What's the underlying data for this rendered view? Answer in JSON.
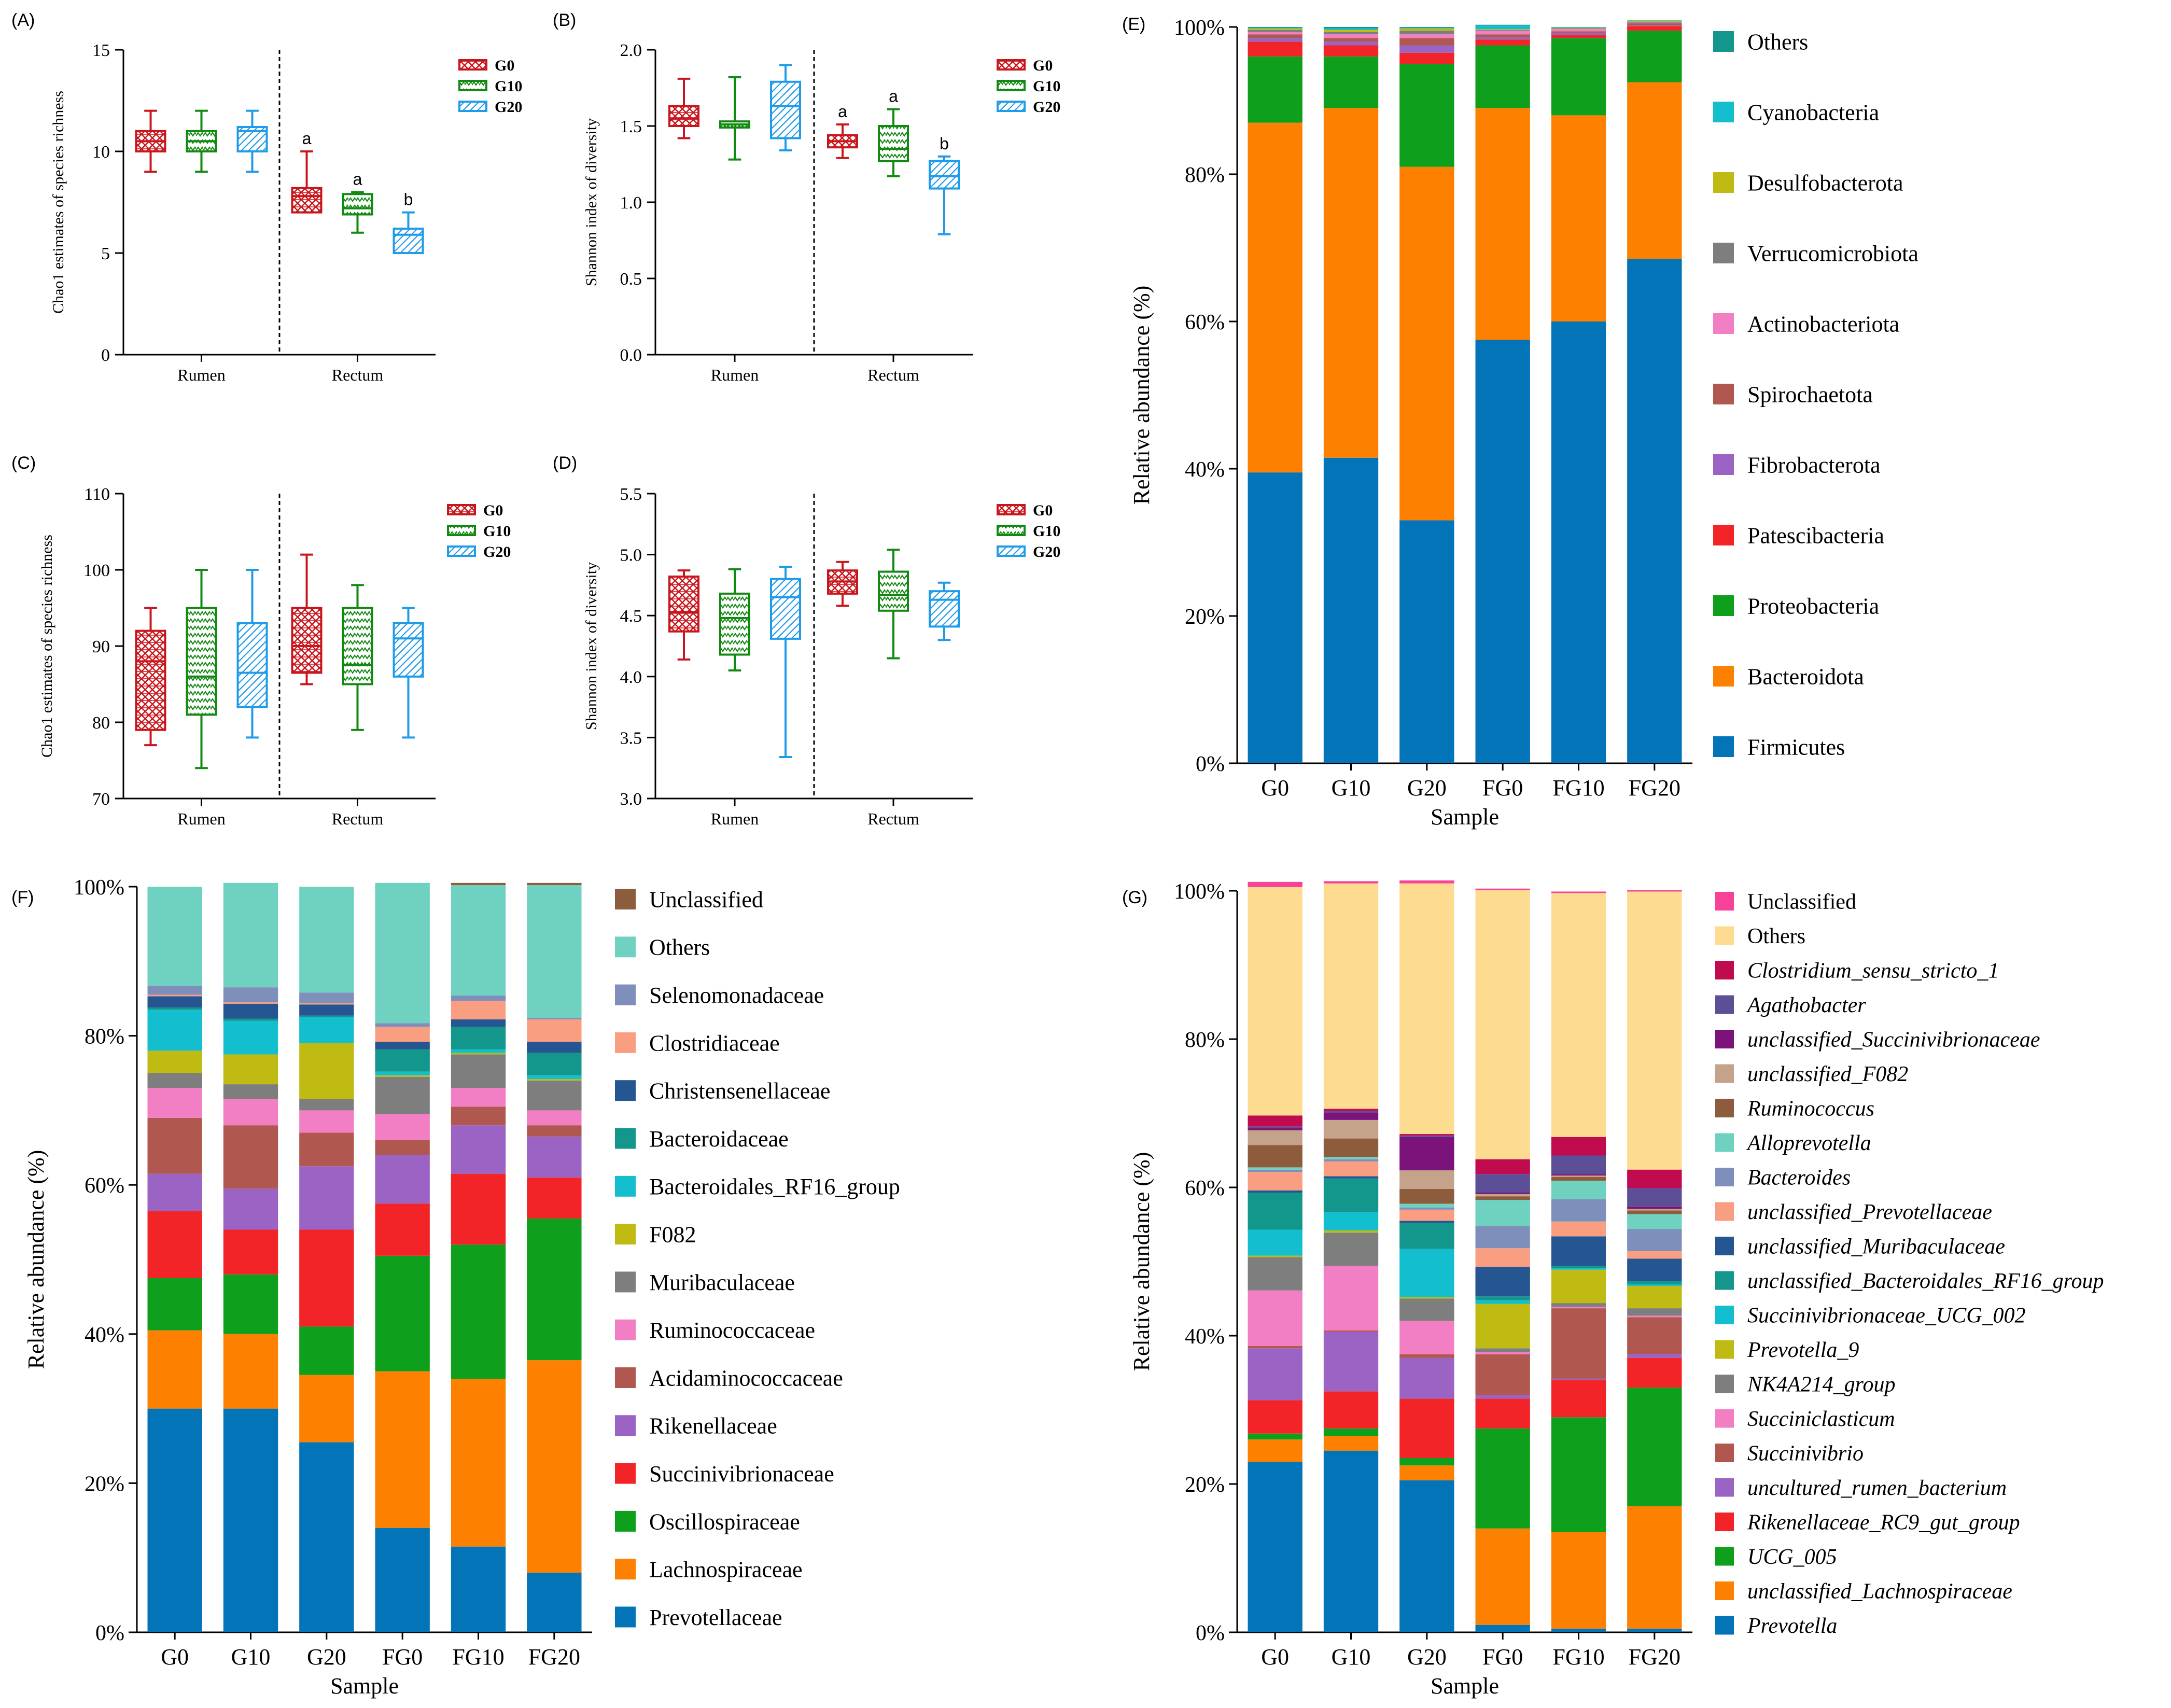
{
  "chart_data": [
    {
      "panel": "(A)",
      "type": "boxplot",
      "ylabel": "Chao1 estimates of species richness",
      "ylim": [
        0,
        15
      ],
      "yticks": [
        0,
        5,
        10,
        15
      ],
      "groups": [
        "Rumen",
        "Rectum"
      ],
      "legend": [
        "G0",
        "G10",
        "G20"
      ],
      "series": [
        {
          "name": "G0",
          "group": "Rumen",
          "min": 9,
          "q1": 10,
          "median": 10.5,
          "q3": 11,
          "max": 12,
          "letter": ""
        },
        {
          "name": "G10",
          "group": "Rumen",
          "min": 9,
          "q1": 10,
          "median": 10.5,
          "q3": 11,
          "max": 12,
          "letter": ""
        },
        {
          "name": "G20",
          "group": "Rumen",
          "min": 9,
          "q1": 10,
          "median": 11,
          "q3": 11.2,
          "max": 12,
          "letter": ""
        },
        {
          "name": "G0",
          "group": "Rectum",
          "min": 7,
          "q1": 7,
          "median": 7.8,
          "q3": 8.2,
          "max": 10,
          "letter": "a"
        },
        {
          "name": "G10",
          "group": "Rectum",
          "min": 6,
          "q1": 6.9,
          "median": 7.2,
          "q3": 7.9,
          "max": 8,
          "letter": "a"
        },
        {
          "name": "G20",
          "group": "Rectum",
          "min": 5,
          "q1": 5,
          "median": 5.9,
          "q3": 6.2,
          "max": 7,
          "letter": "b"
        }
      ]
    },
    {
      "panel": "(B)",
      "type": "boxplot",
      "ylabel": "Shannon index of diversity",
      "ylim": [
        0.0,
        2.0
      ],
      "yticks": [
        "0.0",
        "0.5",
        "1.0",
        "1.5",
        "2.0"
      ],
      "groups": [
        "Rumen",
        "Rectum"
      ],
      "legend": [
        "G0",
        "G10",
        "G20"
      ],
      "series": [
        {
          "name": "G0",
          "group": "Rumen",
          "min": 1.42,
          "q1": 1.5,
          "median": 1.55,
          "q3": 1.63,
          "max": 1.81,
          "letter": ""
        },
        {
          "name": "G10",
          "group": "Rumen",
          "min": 1.28,
          "q1": 1.49,
          "median": 1.51,
          "q3": 1.53,
          "max": 1.82,
          "letter": ""
        },
        {
          "name": "G20",
          "group": "Rumen",
          "min": 1.34,
          "q1": 1.42,
          "median": 1.63,
          "q3": 1.79,
          "max": 1.9,
          "letter": ""
        },
        {
          "name": "G0",
          "group": "Rectum",
          "min": 1.29,
          "q1": 1.36,
          "median": 1.4,
          "q3": 1.44,
          "max": 1.51,
          "letter": "a"
        },
        {
          "name": "G10",
          "group": "Rectum",
          "min": 1.17,
          "q1": 1.27,
          "median": 1.35,
          "q3": 1.5,
          "max": 1.61,
          "letter": "a"
        },
        {
          "name": "G20",
          "group": "Rectum",
          "min": 0.79,
          "q1": 1.09,
          "median": 1.17,
          "q3": 1.27,
          "max": 1.3,
          "letter": "b"
        }
      ]
    },
    {
      "panel": "(C)",
      "type": "boxplot",
      "ylabel": "Chao1 estimates of species richness",
      "ylim": [
        70,
        110
      ],
      "yticks": [
        70,
        80,
        90,
        100,
        110
      ],
      "groups": [
        "Rumen",
        "Rectum"
      ],
      "legend": [
        "G0",
        "G10",
        "G20"
      ],
      "series": [
        {
          "name": "G0",
          "group": "Rumen",
          "min": 77,
          "q1": 79,
          "median": 88,
          "q3": 92,
          "max": 95,
          "letter": ""
        },
        {
          "name": "G10",
          "group": "Rumen",
          "min": 74,
          "q1": 81,
          "median": 86,
          "q3": 95,
          "max": 100,
          "letter": ""
        },
        {
          "name": "G20",
          "group": "Rumen",
          "min": 78,
          "q1": 82,
          "median": 86.5,
          "q3": 93,
          "max": 100,
          "letter": ""
        },
        {
          "name": "G0",
          "group": "Rectum",
          "min": 85,
          "q1": 86.5,
          "median": 90,
          "q3": 95,
          "max": 102,
          "letter": ""
        },
        {
          "name": "G10",
          "group": "Rectum",
          "min": 79,
          "q1": 85,
          "median": 87.5,
          "q3": 95,
          "max": 98,
          "letter": ""
        },
        {
          "name": "G20",
          "group": "Rectum",
          "min": 78,
          "q1": 86,
          "median": 91,
          "q3": 93,
          "max": 95,
          "letter": ""
        }
      ]
    },
    {
      "panel": "(D)",
      "type": "boxplot",
      "ylabel": "Shannon index of diversity",
      "ylim": [
        3.0,
        5.5
      ],
      "yticks": [
        "3.0",
        "3.5",
        "4.0",
        "4.5",
        "5.0",
        "5.5"
      ],
      "groups": [
        "Rumen",
        "Rectum"
      ],
      "legend": [
        "G0",
        "G10",
        "G20"
      ],
      "series": [
        {
          "name": "G0",
          "group": "Rumen",
          "min": 4.14,
          "q1": 4.37,
          "median": 4.53,
          "q3": 4.82,
          "max": 4.87,
          "letter": ""
        },
        {
          "name": "G10",
          "group": "Rumen",
          "min": 4.05,
          "q1": 4.18,
          "median": 4.48,
          "q3": 4.68,
          "max": 4.88,
          "letter": ""
        },
        {
          "name": "G20",
          "group": "Rumen",
          "min": 3.34,
          "q1": 4.31,
          "median": 4.65,
          "q3": 4.8,
          "max": 4.9,
          "letter": ""
        },
        {
          "name": "G0",
          "group": "Rectum",
          "min": 4.58,
          "q1": 4.68,
          "median": 4.78,
          "q3": 4.87,
          "max": 4.94,
          "letter": ""
        },
        {
          "name": "G10",
          "group": "Rectum",
          "min": 4.15,
          "q1": 4.54,
          "median": 4.67,
          "q3": 4.86,
          "max": 5.04,
          "letter": ""
        },
        {
          "name": "G20",
          "group": "Rectum",
          "min": 4.3,
          "q1": 4.41,
          "median": 4.63,
          "q3": 4.7,
          "max": 4.77,
          "letter": ""
        }
      ]
    },
    {
      "panel": "(E)",
      "type": "stacked-bar",
      "xlabel": "Sample",
      "ylabel": "Relative abundance (%)",
      "ylim": [
        0,
        100
      ],
      "yticks": [
        "0%",
        "20%",
        "40%",
        "60%",
        "80%",
        "100%"
      ],
      "categories": [
        "G0",
        "G10",
        "G20",
        "FG0",
        "FG10",
        "FG20"
      ],
      "italic_legend": false,
      "series": [
        {
          "name": "Firmicutes",
          "color": "#0474b8",
          "values": [
            39.5,
            41.5,
            33.0,
            57.5,
            60.0,
            68.5
          ]
        },
        {
          "name": "Bacteroidota",
          "color": "#fe8000",
          "values": [
            47.5,
            47.5,
            48.0,
            31.5,
            28.0,
            24.0
          ]
        },
        {
          "name": "Proteobacteria",
          "color": "#0ea01c",
          "values": [
            9.0,
            7.0,
            14.0,
            8.5,
            10.5,
            7.0
          ]
        },
        {
          "name": "Patescibacteria",
          "color": "#f32428",
          "values": [
            2.0,
            1.5,
            1.5,
            0.8,
            0.4,
            0.6
          ]
        },
        {
          "name": "Fibrobacterota",
          "color": "#9b63c3",
          "values": [
            0.5,
            0.5,
            1.0,
            0.3,
            0.3,
            0.1
          ]
        },
        {
          "name": "Spirochaetota",
          "color": "#b05850",
          "values": [
            0.5,
            0.5,
            1.0,
            0.4,
            0.2,
            0.3
          ]
        },
        {
          "name": "Actinobacteriota",
          "color": "#f27fc4",
          "values": [
            0.3,
            0.5,
            0.5,
            0.5,
            0.3,
            0.1
          ]
        },
        {
          "name": "Verrucomicrobiota",
          "color": "#7e7e7e",
          "values": [
            0.3,
            0.3,
            0.5,
            0.1,
            0.1,
            0.1
          ]
        },
        {
          "name": "Desulfobacterota",
          "color": "#bfbb12",
          "values": [
            0.2,
            0.3,
            0.3,
            0.1,
            0.1,
            0.1
          ]
        },
        {
          "name": "Cyanobacteria",
          "color": "#13becf",
          "values": [
            0.1,
            0.2,
            0.1,
            0.5,
            0.1,
            0.1
          ]
        },
        {
          "name": "Others",
          "color": "#13968b",
          "values": [
            0.1,
            0.2,
            0.1,
            0.1,
            0.0,
            0.0
          ]
        }
      ]
    },
    {
      "panel": "(F)",
      "type": "stacked-bar",
      "xlabel": "Sample",
      "ylabel": "Relative abundance (%)",
      "ylim": [
        0,
        100
      ],
      "yticks": [
        "0%",
        "20%",
        "40%",
        "60%",
        "80%",
        "100%"
      ],
      "categories": [
        "G0",
        "G10",
        "G20",
        "FG0",
        "FG10",
        "FG20"
      ],
      "italic_legend": false,
      "series": [
        {
          "name": "Prevotellaceae",
          "color": "#0474b8",
          "values": [
            30.0,
            30.0,
            25.5,
            14.0,
            11.5,
            8.0
          ]
        },
        {
          "name": "Lachnospiraceae",
          "color": "#fe8000",
          "values": [
            10.5,
            10.0,
            9.0,
            21.0,
            22.5,
            28.5
          ]
        },
        {
          "name": "Oscillospiraceae",
          "color": "#0ea01c",
          "values": [
            7.0,
            8.0,
            6.5,
            15.5,
            18.0,
            19.0
          ]
        },
        {
          "name": "Succinivibrionaceae",
          "color": "#f32428",
          "values": [
            9.0,
            6.0,
            13.0,
            7.0,
            9.5,
            5.5
          ]
        },
        {
          "name": "Rikenellaceae",
          "color": "#9b63c3",
          "values": [
            5.0,
            5.5,
            8.5,
            6.5,
            6.5,
            5.5
          ]
        },
        {
          "name": "Acidaminococcaceae",
          "color": "#b05850",
          "values": [
            7.5,
            8.5,
            4.5,
            2.0,
            2.5,
            1.5
          ]
        },
        {
          "name": "Ruminococcaceae",
          "color": "#f27fc4",
          "values": [
            4.0,
            3.5,
            3.0,
            3.5,
            2.5,
            2.0
          ]
        },
        {
          "name": "Muribaculaceae",
          "color": "#7e7e7e",
          "values": [
            2.0,
            2.0,
            1.5,
            5.0,
            4.5,
            4.0
          ]
        },
        {
          "name": "F082",
          "color": "#bfbb12",
          "values": [
            3.0,
            4.0,
            7.5,
            0.2,
            0.2,
            0.2
          ]
        },
        {
          "name": "Bacteroidales_RF16_group",
          "color": "#13becf",
          "values": [
            5.5,
            4.5,
            3.5,
            0.5,
            0.5,
            0.5
          ]
        },
        {
          "name": "Bacteroidaceae",
          "color": "#13968b",
          "values": [
            0.3,
            0.3,
            0.2,
            3.0,
            3.0,
            3.0
          ]
        },
        {
          "name": "Christensenellaceae",
          "color": "#255692",
          "values": [
            1.5,
            2.0,
            1.5,
            1.0,
            1.0,
            1.5
          ]
        },
        {
          "name": "Clostridiaceae",
          "color": "#fa9e82",
          "values": [
            0.2,
            0.2,
            0.2,
            2.0,
            2.5,
            3.0
          ]
        },
        {
          "name": "Selenomonadaceae",
          "color": "#7f8fbb",
          "values": [
            1.2,
            2.0,
            1.4,
            0.5,
            0.7,
            0.2
          ]
        },
        {
          "name": "Others",
          "color": "#6fd2c1",
          "values": [
            13.3,
            14.0,
            14.2,
            18.8,
            14.8,
            17.8
          ]
        },
        {
          "name": "Unclassified",
          "color": "#8c5c3c",
          "values": [
            0.0,
            0.0,
            0.0,
            0.0,
            0.3,
            0.3
          ]
        }
      ]
    },
    {
      "panel": "(G)",
      "type": "stacked-bar",
      "xlabel": "Sample",
      "ylabel": "Relative abundance (%)",
      "ylim": [
        0,
        100
      ],
      "yticks": [
        "0%",
        "20%",
        "40%",
        "60%",
        "80%",
        "100%"
      ],
      "categories": [
        "G0",
        "G10",
        "G20",
        "FG0",
        "FG10",
        "FG20"
      ],
      "italic_legend": true,
      "series": [
        {
          "name": "Prevotella",
          "color": "#0474b8",
          "values": [
            23.0,
            24.5,
            20.5,
            1.0,
            0.5,
            0.5
          ]
        },
        {
          "name": "unclassified_Lachnospiraceae",
          "color": "#fe8000",
          "values": [
            3.0,
            2.0,
            2.0,
            13.0,
            13.0,
            16.5
          ]
        },
        {
          "name": "UCG_005",
          "color": "#0ea01c",
          "values": [
            0.8,
            1.0,
            1.0,
            13.5,
            15.5,
            16.0
          ]
        },
        {
          "name": "Rikenellaceae_RC9_gut_group",
          "color": "#f32428",
          "values": [
            4.5,
            5.0,
            8.0,
            4.0,
            5.0,
            4.0
          ]
        },
        {
          "name": "uncultured_rumen_bacterium",
          "color": "#9b63c3",
          "values": [
            7.0,
            8.0,
            5.5,
            0.5,
            0.2,
            0.5
          ]
        },
        {
          "name": "Succinivibrio",
          "color": "#b05850",
          "values": [
            0.3,
            0.2,
            0.5,
            5.5,
            9.5,
            5.0
          ]
        },
        {
          "name": "Succiniclasticum",
          "color": "#f27fc4",
          "values": [
            7.5,
            8.7,
            4.5,
            0.3,
            0.2,
            0.2
          ]
        },
        {
          "name": "NK4A214_group",
          "color": "#7e7e7e",
          "values": [
            4.5,
            4.5,
            3.0,
            0.5,
            0.5,
            1.0
          ]
        },
        {
          "name": "Prevotella_9",
          "color": "#bfbb12",
          "values": [
            0.2,
            0.3,
            0.2,
            6.0,
            4.5,
            3.0
          ]
        },
        {
          "name": "Succinivibrionaceae_UCG_002",
          "color": "#13becf",
          "values": [
            3.5,
            2.5,
            6.5,
            0.5,
            0.2,
            0.2
          ]
        },
        {
          "name": "unclassified_Bacteroidales_RF16_group",
          "color": "#13968b",
          "values": [
            5.0,
            4.5,
            3.5,
            0.5,
            0.3,
            0.5
          ]
        },
        {
          "name": "unclassified_Muribaculaceae",
          "color": "#255692",
          "values": [
            0.3,
            0.3,
            0.3,
            4.0,
            4.0,
            3.0
          ]
        },
        {
          "name": "unclassified_Prevotellaceae",
          "color": "#fa9e82",
          "values": [
            2.5,
            2.0,
            1.5,
            2.5,
            2.0,
            1.0
          ]
        },
        {
          "name": "Bacteroides",
          "color": "#7f8fbb",
          "values": [
            0.3,
            0.3,
            0.3,
            3.0,
            3.0,
            3.0
          ]
        },
        {
          "name": "Alloprevotella",
          "color": "#6fd2c1",
          "values": [
            0.3,
            0.3,
            0.5,
            3.5,
            2.5,
            2.0
          ]
        },
        {
          "name": "Ruminococcus",
          "color": "#8c5c3c",
          "values": [
            3.0,
            2.5,
            2.0,
            0.5,
            0.5,
            0.5
          ]
        },
        {
          "name": "unclassified_F082",
          "color": "#c4a38a",
          "values": [
            2.0,
            2.5,
            2.5,
            0.3,
            0.2,
            0.2
          ]
        },
        {
          "name": "unclassified_Succinivibrionaceae",
          "color": "#7b137a",
          "values": [
            0.3,
            1.0,
            4.5,
            0.2,
            0.2,
            0.3
          ]
        },
        {
          "name": "Agathobacter",
          "color": "#5c4f98",
          "values": [
            0.2,
            0.2,
            0.2,
            2.5,
            2.5,
            2.5
          ]
        },
        {
          "name": "Clostridium_sensu_stricto_1",
          "color": "#c10b4f",
          "values": [
            1.5,
            0.3,
            0.2,
            2.0,
            2.5,
            2.5
          ]
        },
        {
          "name": "Others",
          "color": "#fddb91",
          "values": [
            30.8,
            30.4,
            33.8,
            36.3,
            32.9,
            37.5
          ]
        },
        {
          "name": "Unclassified",
          "color": "#f8429a",
          "values": [
            0.7,
            0.3,
            0.4,
            0.2,
            0.2,
            0.2
          ]
        }
      ]
    }
  ]
}
